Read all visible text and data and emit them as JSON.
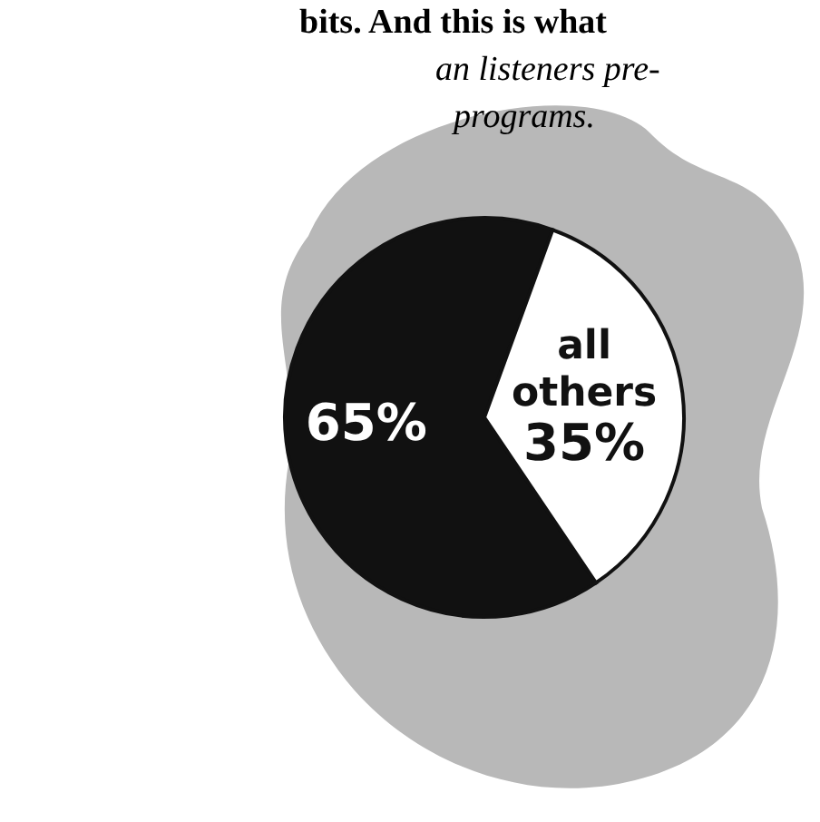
{
  "chart_data": {
    "type": "pie",
    "categories": [
      null,
      "all others"
    ],
    "values": [
      65,
      35
    ],
    "colors": [
      "#111111",
      "#ffffff"
    ],
    "value_labels": [
      "65%",
      "35%"
    ],
    "annotations": [
      "bits. And this is what",
      "an listeners pre-",
      "programs."
    ]
  }
}
